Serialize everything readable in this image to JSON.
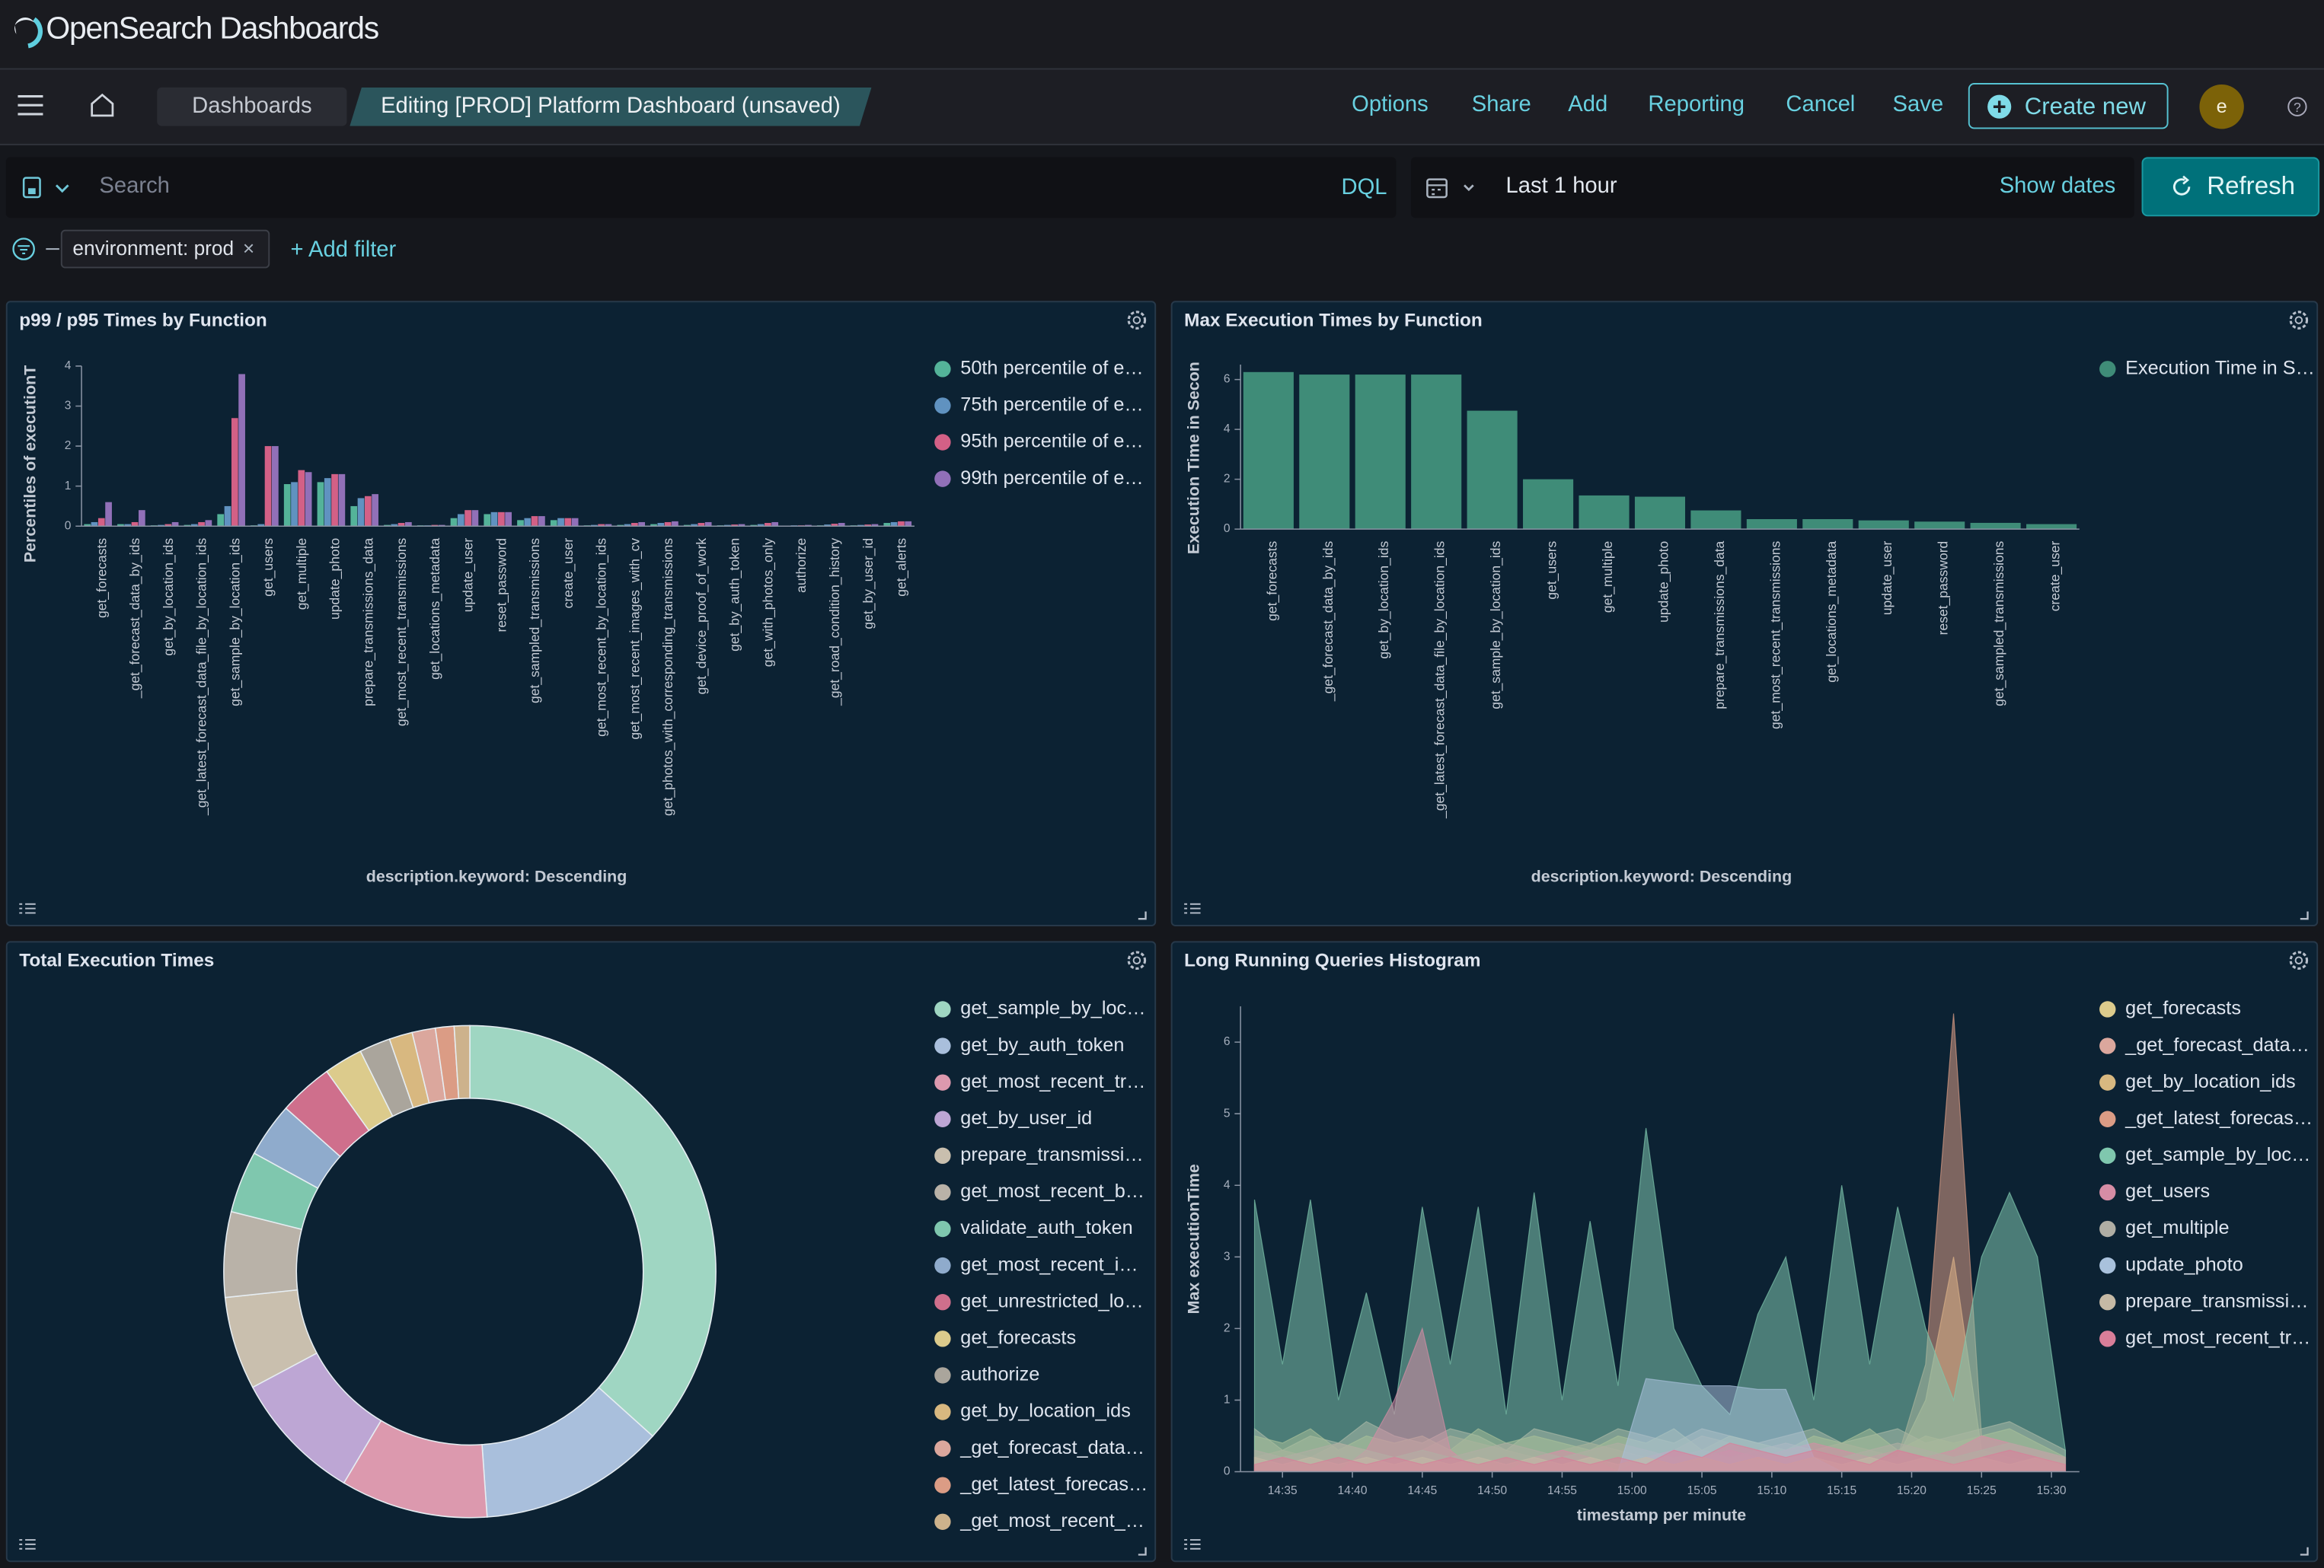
{
  "header": {
    "brand": "OpenSearch Dashboards"
  },
  "nav": {
    "breadcrumbs": [
      "Dashboards",
      "Editing [PROD] Platform Dashboard (unsaved)"
    ],
    "actions": [
      "Options",
      "Share",
      "Add",
      "Reporting",
      "Cancel",
      "Save"
    ],
    "create_new": "Create new",
    "avatar": "e"
  },
  "query": {
    "placeholder": "Search",
    "language": "DQL",
    "time_range": "Last 1 hour",
    "show_dates": "Show dates",
    "refresh": "Refresh"
  },
  "filters": {
    "pills": [
      "environment: prod"
    ],
    "add_filter": "+ Add filter"
  },
  "panels": [
    {
      "title": "p99 / p95 Times by Function",
      "chart": {
        "type": "bar",
        "y_label": "Percentiles of executionT",
        "x_label": "description.keyword: Descending",
        "categories": [
          "get_forecasts",
          "_get_forecast_data_by_ids",
          "get_by_location_ids",
          "_get_latest_forecast_data_file_by_location_ids",
          "get_sample_by_location_ids",
          "get_users",
          "get_multiple",
          "update_photo",
          "prepare_transmissions_data",
          "get_most_recent_transmissions",
          "get_locations_metadata",
          "update_user",
          "reset_password",
          "get_sampled_transmissions",
          "create_user",
          "get_most_recent_by_location_ids",
          "get_most_recent_images_with_cv",
          "get_photos_with_corresponding_transmissions",
          "get_device_proof_of_work",
          "get_by_auth_token",
          "get_with_photos_only",
          "authorize",
          "_get_road_condition_history",
          "get_by_user_id",
          "get_alerts"
        ],
        "series": [
          {
            "name": "50th percentile of e…",
            "color": "#54b399",
            "values": [
              0.05,
              0.05,
              0.02,
              0.03,
              0.3,
              0.02,
              1.05,
              1.1,
              0.5,
              0.03,
              0.02,
              0.2,
              0.3,
              0.15,
              0.15,
              0.02,
              0.03,
              0.05,
              0.03,
              0.02,
              0.03,
              0.01,
              0.02,
              0.02,
              0.08
            ]
          },
          {
            "name": "75th percentile of e…",
            "color": "#6092c0",
            "values": [
              0.1,
              0.05,
              0.03,
              0.05,
              0.5,
              0.05,
              1.1,
              1.2,
              0.7,
              0.05,
              0.02,
              0.3,
              0.35,
              0.2,
              0.2,
              0.03,
              0.05,
              0.08,
              0.05,
              0.03,
              0.05,
              0.02,
              0.04,
              0.03,
              0.1
            ]
          },
          {
            "name": "95th percentile of e…",
            "color": "#d36086",
            "values": [
              0.2,
              0.1,
              0.05,
              0.1,
              2.7,
              2.0,
              1.4,
              1.3,
              0.75,
              0.08,
              0.03,
              0.4,
              0.35,
              0.25,
              0.2,
              0.05,
              0.08,
              0.1,
              0.08,
              0.04,
              0.08,
              0.02,
              0.06,
              0.04,
              0.12
            ]
          },
          {
            "name": "99th percentile of e…",
            "color": "#9170b8",
            "values": [
              0.6,
              0.4,
              0.1,
              0.15,
              3.8,
              2.0,
              1.35,
              1.3,
              0.8,
              0.1,
              0.03,
              0.4,
              0.35,
              0.25,
              0.2,
              0.05,
              0.1,
              0.12,
              0.1,
              0.05,
              0.1,
              0.03,
              0.08,
              0.05,
              0.12
            ]
          }
        ],
        "ylim": [
          0,
          4
        ],
        "yticks": [
          0,
          1,
          2,
          3,
          4
        ]
      }
    },
    {
      "title": "Max Execution Times by Function",
      "chart": {
        "type": "bar",
        "y_label": "Execution Time in Secon",
        "x_label": "description.keyword: Descending",
        "categories": [
          "get_forecasts",
          "_get_forecast_data_by_ids",
          "get_by_location_ids",
          "_get_latest_forecast_data_file_by_location_ids",
          "get_sample_by_location_ids",
          "get_users",
          "get_multiple",
          "update_photo",
          "prepare_transmissions_data",
          "get_most_recent_transmissions",
          "get_locations_metadata",
          "update_user",
          "reset_password",
          "get_sampled_transmissions",
          "create_user"
        ],
        "series": [
          {
            "name": "Execution Time in S…",
            "color": "#3f8c78",
            "values": [
              6.3,
              6.2,
              6.2,
              6.2,
              4.75,
              2.0,
              1.35,
              1.3,
              0.75,
              0.4,
              0.4,
              0.35,
              0.3,
              0.25,
              0.2
            ]
          }
        ],
        "ylim": [
          0,
          6.6
        ],
        "yticks": [
          0,
          2,
          4,
          6
        ]
      }
    },
    {
      "title": "Total Execution Times",
      "chart": {
        "type": "pie",
        "categories": [
          "get_sample_by_loc…",
          "get_by_auth_token",
          "get_most_recent_tr…",
          "get_by_user_id",
          "prepare_transmissi…",
          "get_most_recent_b…",
          "validate_auth_token",
          "get_most_recent_i…",
          "get_unrestricted_lo…",
          "get_forecasts",
          "authorize",
          "get_by_location_ids",
          "_get_forecast_data…",
          "_get_latest_forecas…",
          "_get_most_recent_…"
        ],
        "values": [
          36,
          12,
          9.5,
          8.5,
          6,
          5.5,
          4,
          3.5,
          3.5,
          2.5,
          2,
          1.5,
          1.5,
          1.2,
          1
        ],
        "colors": [
          "#9fd6c2",
          "#a9bfdc",
          "#dc99ae",
          "#bda6d4",
          "#c9bfae",
          "#b9b2a8",
          "#7fc7ae",
          "#8fabcc",
          "#cf6f8c",
          "#dccb8c",
          "#aaa59c",
          "#d8b880",
          "#dba79d",
          "#db9c85",
          "#cdb28c"
        ]
      }
    },
    {
      "title": "Long Running Queries Histogram",
      "chart": {
        "type": "area",
        "y_label": "Max executionTime",
        "x_label": "timestamp per minute",
        "x": [
          "14:33",
          "14:35",
          "14:37",
          "14:39",
          "14:41",
          "14:43",
          "14:45",
          "14:47",
          "14:49",
          "14:51",
          "14:53",
          "14:55",
          "14:57",
          "14:59",
          "15:01",
          "15:03",
          "15:05",
          "15:07",
          "15:09",
          "15:11",
          "15:13",
          "15:15",
          "15:17",
          "15:19",
          "15:21",
          "15:23",
          "15:25",
          "15:27",
          "15:29",
          "15:31"
        ],
        "series": [
          {
            "name": "get_forecasts",
            "color": "#dccb8c",
            "values": [
              0.1,
              0.2,
              0.1,
              0.2,
              0.1,
              0.2,
              0.1,
              0.2,
              0.1,
              0.2,
              0.1,
              0.2,
              0.1,
              0.2,
              0.1,
              0.2,
              0.1,
              0.2,
              0.1,
              0.2,
              0.1,
              0.2,
              0.1,
              0.2,
              1.0,
              3.0,
              0.3,
              0.2,
              0.1,
              0.2
            ]
          },
          {
            "name": "_get_forecast_data…",
            "color": "#dba79d",
            "values": [
              0.6,
              0.3,
              0.5,
              0.4,
              0.7,
              0.5,
              0.4,
              0.6,
              0.5,
              0.3,
              0.6,
              0.5,
              0.4,
              0.6,
              0.5,
              0.4,
              0.6,
              0.5,
              0.4,
              0.5,
              0.6,
              0.4,
              0.5,
              0.6,
              0.4,
              0.5,
              0.6,
              0.7,
              0.5,
              0.3
            ]
          },
          {
            "name": "get_by_location_ids",
            "color": "#d8b880",
            "values": [
              0.5,
              0.4,
              0.6,
              0.3,
              0.5,
              0.4,
              0.5,
              0.3,
              0.6,
              0.4,
              0.5,
              0.4,
              0.3,
              0.5,
              0.4,
              0.6,
              0.3,
              0.5,
              0.4,
              0.3,
              0.5,
              0.4,
              0.6,
              0.3,
              0.5,
              0.4,
              0.5,
              0.6,
              0.4,
              0.2
            ]
          },
          {
            "name": "_get_latest_forecas…",
            "color": "#db9c85",
            "values": [
              0.2,
              0.3,
              0.2,
              0.4,
              0.3,
              0.2,
              0.3,
              0.5,
              0.4,
              0.3,
              0.2,
              0.3,
              0.4,
              0.3,
              0.2,
              0.3,
              0.5,
              0.4,
              0.3,
              0.2,
              0.3,
              0.4,
              0.3,
              0.2,
              1.5,
              6.4,
              0.5,
              0.4,
              0.3,
              0.2
            ]
          },
          {
            "name": "get_sample_by_loc…",
            "color": "#7fc7ae",
            "values": [
              3.8,
              1.5,
              3.8,
              1.0,
              2.5,
              0.8,
              3.7,
              1.5,
              3.7,
              0.8,
              3.9,
              1.0,
              3.5,
              1.2,
              4.8,
              2.0,
              1.2,
              0.8,
              2.2,
              3.0,
              1.0,
              4.0,
              1.5,
              3.7,
              2.0,
              1.0,
              3.0,
              3.9,
              3.0,
              0.3
            ]
          },
          {
            "name": "get_users",
            "color": "#d68da5",
            "values": [
              0,
              0,
              0,
              0,
              0.3,
              1.0,
              2.0,
              0.3,
              0,
              0,
              0.2,
              0.3,
              0.2,
              0,
              0.2,
              0.3,
              0.2,
              0.3,
              0.2,
              0.3,
              0.4,
              0.3,
              0.2,
              0.3,
              0.2,
              0.3,
              0.5,
              0.4,
              0.3,
              0.2
            ]
          },
          {
            "name": "get_multiple",
            "color": "#b0aea4",
            "values": [
              0.3,
              0.2,
              0.3,
              0.4,
              0.3,
              0.2,
              0.3,
              0.2,
              0.3,
              0.4,
              0.3,
              0.2,
              0.3,
              0.4,
              0.3,
              0.2,
              0.3,
              0.2,
              0.3,
              0.4,
              0.3,
              0.2,
              0.3,
              0.4,
              0.3,
              0.2,
              0.3,
              0.4,
              0.3,
              0.2
            ]
          },
          {
            "name": "update_photo",
            "color": "#a9c1dc",
            "values": [
              0,
              0,
              0,
              0,
              0,
              0,
              0,
              0,
              0,
              0,
              0,
              0,
              0,
              0,
              1.3,
              1.25,
              1.2,
              1.2,
              1.15,
              1.15,
              0.2,
              0,
              0,
              0,
              0,
              0,
              0,
              0,
              0,
              0
            ]
          },
          {
            "name": "prepare_transmissi…",
            "color": "#c5b9a5",
            "values": [
              0.2,
              0.1,
              0.2,
              0.1,
              0.2,
              0.1,
              0.2,
              0.1,
              0.2,
              0.1,
              0.2,
              0.1,
              0.2,
              0.1,
              0.2,
              0.1,
              0.2,
              0.1,
              0.2,
              0.1,
              0.2,
              0.1,
              0.2,
              0.1,
              0.2,
              0.1,
              0.2,
              0.1,
              0.2,
              0.1
            ]
          },
          {
            "name": "get_most_recent_tr…",
            "color": "#d97e99",
            "values": [
              0.1,
              0.2,
              0.1,
              0.2,
              0.1,
              0.2,
              0.1,
              0.2,
              0.1,
              0.2,
              0.1,
              0.2,
              0.1,
              0.2,
              0.1,
              0.3,
              0.2,
              0.4,
              0.3,
              0.2,
              0.3,
              0.2,
              0.1,
              0.3,
              0.2,
              0.1,
              0.2,
              0.3,
              0.2,
              0.1
            ]
          }
        ],
        "xlim": [
          "14:32",
          "15:32"
        ],
        "xticks": [
          "14:35",
          "14:40",
          "14:45",
          "14:50",
          "14:55",
          "15:00",
          "15:05",
          "15:10",
          "15:15",
          "15:20",
          "15:25",
          "15:30"
        ],
        "ylim": [
          0,
          6.5
        ],
        "yticks": [
          0,
          1,
          2,
          3,
          4,
          5,
          6
        ]
      }
    }
  ]
}
